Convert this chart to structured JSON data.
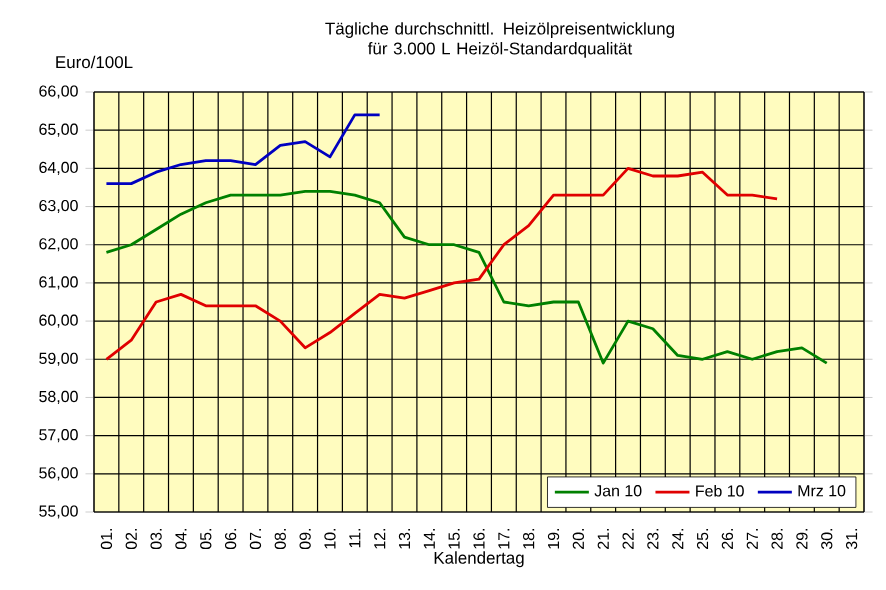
{
  "chart_data": {
    "type": "line",
    "title": "Tägliche durchschnittl. Heizölpreisentwicklung für 3.000 L Heizöl-Standardqualität",
    "xlabel": "Kalendertag",
    "ylabel": "Euro/100L",
    "categories": [
      "01.",
      "02.",
      "03.",
      "04.",
      "05.",
      "06.",
      "07.",
      "08.",
      "09.",
      "10.",
      "11.",
      "12.",
      "13.",
      "14.",
      "15.",
      "16.",
      "17.",
      "18.",
      "19.",
      "20.",
      "21.",
      "22.",
      "23.",
      "24.",
      "25.",
      "26.",
      "27.",
      "28.",
      "29.",
      "30.",
      "31."
    ],
    "series": [
      {
        "name": "Jan 10",
        "color": "#008000",
        "values": [
          61.8,
          62.0,
          62.4,
          62.8,
          63.1,
          63.3,
          63.3,
          63.3,
          63.4,
          63.4,
          63.3,
          63.1,
          62.2,
          62.0,
          62.0,
          61.8,
          60.5,
          60.4,
          60.5,
          60.5,
          58.9,
          60.0,
          59.8,
          59.1,
          59.0,
          59.2,
          59.0,
          59.2,
          59.3,
          58.9,
          null
        ]
      },
      {
        "name": "Feb 10",
        "color": "#e00000",
        "values": [
          59.0,
          59.5,
          60.5,
          60.7,
          60.4,
          60.4,
          60.4,
          60.0,
          59.3,
          59.7,
          60.2,
          60.7,
          60.6,
          60.8,
          61.0,
          61.1,
          62.0,
          62.5,
          63.3,
          63.3,
          63.3,
          64.0,
          63.8,
          63.8,
          63.9,
          63.3,
          63.3,
          63.2,
          null,
          null,
          null
        ]
      },
      {
        "name": "Mrz 10",
        "color": "#0000c0",
        "values": [
          63.6,
          63.6,
          63.9,
          64.1,
          64.2,
          64.2,
          64.1,
          64.6,
          64.7,
          64.3,
          65.4,
          65.4,
          null,
          null,
          null,
          null,
          null,
          null,
          null,
          null,
          null,
          null,
          null,
          null,
          null,
          null,
          null,
          null,
          null,
          null,
          null
        ]
      }
    ],
    "ylim": [
      55,
      66
    ],
    "yticks": [
      {
        "value": 55,
        "label": "55,00"
      },
      {
        "value": 56,
        "label": "56,00"
      },
      {
        "value": 57,
        "label": "57,00"
      },
      {
        "value": 58,
        "label": "58,00"
      },
      {
        "value": 59,
        "label": "59,00"
      },
      {
        "value": 60,
        "label": "60,00"
      },
      {
        "value": 61,
        "label": "61,00"
      },
      {
        "value": 62,
        "label": "62,00"
      },
      {
        "value": 63,
        "label": "63,00"
      },
      {
        "value": 64,
        "label": "64,00"
      },
      {
        "value": 65,
        "label": "65,00"
      },
      {
        "value": 66,
        "label": "66,00"
      }
    ],
    "grid": true,
    "legend": "bottom right",
    "marker": "none",
    "line_style": "solid"
  }
}
